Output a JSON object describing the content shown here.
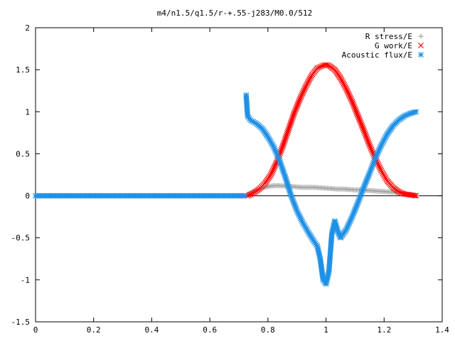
{
  "chart_data": {
    "type": "scatter",
    "title": "m4/n1.5/q1.5/r-+.55-j283/M0.0/512",
    "xlabel": "",
    "ylabel": "",
    "xlim": [
      0,
      1.4
    ],
    "ylim": [
      -1.5,
      2
    ],
    "xticks": [
      "0",
      "0.2",
      "0.4",
      "0.6",
      "0.8",
      "1",
      "1.2",
      "1.4"
    ],
    "yticks": [
      "-1.5",
      "-1",
      "-0.5",
      "0",
      "0.5",
      "1",
      "1.5",
      "2"
    ],
    "grid": false,
    "legend_position": "top-right",
    "series": [
      {
        "name": "R stress/E",
        "marker": "plus",
        "color": "#a0a0a0",
        "x": [
          0.73,
          0.75,
          0.77,
          0.79,
          0.8,
          0.82,
          0.84,
          0.86,
          0.88,
          0.9,
          0.92,
          0.94,
          0.96,
          0.98,
          1.0,
          1.02,
          1.04,
          1.06,
          1.08,
          1.1,
          1.12,
          1.14,
          1.16,
          1.18,
          1.2,
          1.22,
          1.24,
          1.26,
          1.28,
          1.3,
          1.31
        ],
        "y": [
          0.02,
          0.05,
          0.08,
          0.1,
          0.11,
          0.12,
          0.12,
          0.115,
          0.11,
          0.105,
          0.1,
          0.1,
          0.1,
          0.095,
          0.09,
          0.085,
          0.08,
          0.08,
          0.075,
          0.07,
          0.07,
          0.065,
          0.06,
          0.055,
          0.05,
          0.045,
          0.04,
          0.03,
          0.02,
          0.01,
          0.0
        ]
      },
      {
        "name": "G work/E",
        "marker": "cross",
        "color": "#ff0000",
        "x": [
          0.73,
          0.75,
          0.77,
          0.79,
          0.81,
          0.83,
          0.85,
          0.87,
          0.89,
          0.91,
          0.93,
          0.95,
          0.97,
          0.99,
          1.0,
          1.01,
          1.03,
          1.05,
          1.07,
          1.09,
          1.11,
          1.13,
          1.15,
          1.17,
          1.19,
          1.21,
          1.23,
          1.25,
          1.27,
          1.29,
          1.31
        ],
        "y": [
          0.0,
          0.03,
          0.08,
          0.15,
          0.25,
          0.4,
          0.58,
          0.78,
          0.98,
          1.15,
          1.3,
          1.43,
          1.52,
          1.55,
          1.56,
          1.55,
          1.5,
          1.4,
          1.27,
          1.12,
          0.95,
          0.78,
          0.6,
          0.44,
          0.3,
          0.18,
          0.1,
          0.05,
          0.02,
          0.01,
          0.0
        ]
      },
      {
        "name": "Acoustic flux/E",
        "marker": "star",
        "color": "#1e90e6",
        "x": [
          0.0,
          0.04,
          0.08,
          0.12,
          0.16,
          0.2,
          0.24,
          0.28,
          0.32,
          0.36,
          0.4,
          0.44,
          0.48,
          0.52,
          0.56,
          0.6,
          0.64,
          0.68,
          0.72,
          0.725,
          0.73,
          0.74,
          0.76,
          0.78,
          0.8,
          0.82,
          0.84,
          0.86,
          0.88,
          0.9,
          0.92,
          0.94,
          0.96,
          0.97,
          0.98,
          0.99,
          1.0,
          1.01,
          1.02,
          1.03,
          1.04,
          1.05,
          1.07,
          1.09,
          1.11,
          1.13,
          1.15,
          1.17,
          1.19,
          1.21,
          1.23,
          1.25,
          1.27,
          1.29,
          1.31
        ],
        "y": [
          0.0,
          0.0,
          0.0,
          0.0,
          0.0,
          0.0,
          0.0,
          0.0,
          0.0,
          0.0,
          0.0,
          0.0,
          0.0,
          0.0,
          0.0,
          0.0,
          0.0,
          0.0,
          0.0,
          1.2,
          0.95,
          0.9,
          0.86,
          0.8,
          0.7,
          0.58,
          0.42,
          0.22,
          0.0,
          -0.18,
          -0.32,
          -0.44,
          -0.55,
          -0.6,
          -0.75,
          -1.0,
          -1.05,
          -0.9,
          -0.45,
          -0.3,
          -0.42,
          -0.5,
          -0.4,
          -0.25,
          -0.08,
          0.1,
          0.27,
          0.45,
          0.6,
          0.73,
          0.83,
          0.9,
          0.95,
          0.98,
          1.0
        ]
      }
    ]
  }
}
